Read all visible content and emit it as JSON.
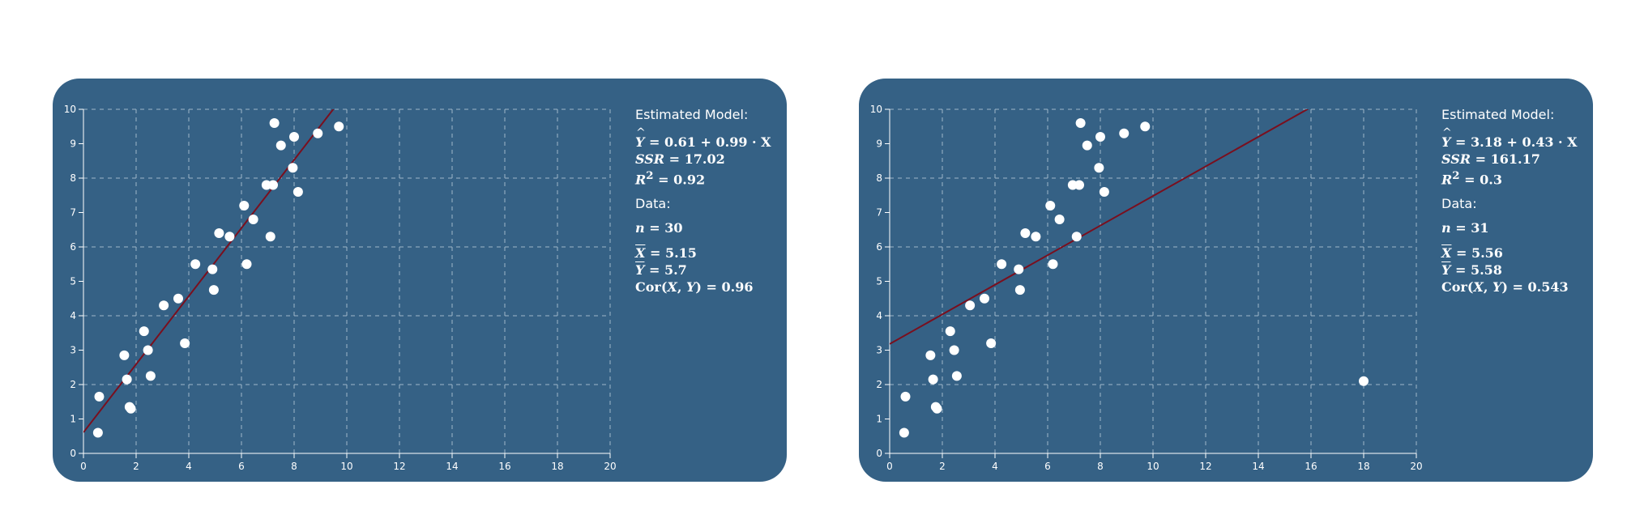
{
  "colors": {
    "panel": "#356185",
    "grid": "#9fb6c9",
    "axis": "#ffffff",
    "point": "#ffffff",
    "fit_line": "#7a0f1e"
  },
  "chart_data": [
    {
      "type": "scatter",
      "xlim": [
        0,
        20
      ],
      "ylim": [
        0,
        10
      ],
      "x_ticks": [
        "0",
        "2",
        "4",
        "6",
        "8",
        "10",
        "12",
        "14",
        "16",
        "18",
        "20"
      ],
      "y_ticks": [
        "0",
        "1",
        "2",
        "3",
        "4",
        "5",
        "6",
        "7",
        "8",
        "9",
        "10"
      ],
      "grid": true,
      "fit_line": {
        "intercept": 0.61,
        "slope": 0.99
      },
      "points": [
        [
          0.55,
          0.6
        ],
        [
          0.6,
          1.65
        ],
        [
          1.55,
          2.85
        ],
        [
          1.65,
          2.15
        ],
        [
          1.75,
          1.35
        ],
        [
          1.8,
          1.3
        ],
        [
          2.3,
          3.55
        ],
        [
          2.45,
          3.0
        ],
        [
          2.55,
          2.25
        ],
        [
          3.05,
          4.3
        ],
        [
          3.6,
          4.5
        ],
        [
          3.85,
          3.2
        ],
        [
          4.25,
          5.5
        ],
        [
          4.9,
          5.35
        ],
        [
          4.95,
          4.75
        ],
        [
          5.15,
          6.4
        ],
        [
          5.55,
          6.3
        ],
        [
          6.1,
          7.2
        ],
        [
          6.2,
          5.5
        ],
        [
          6.45,
          6.8
        ],
        [
          6.95,
          7.8
        ],
        [
          7.1,
          6.3
        ],
        [
          7.2,
          7.8
        ],
        [
          7.25,
          9.6
        ],
        [
          7.5,
          8.95
        ],
        [
          7.95,
          8.3
        ],
        [
          8.0,
          9.2
        ],
        [
          8.15,
          7.6
        ],
        [
          8.9,
          9.3
        ],
        [
          9.7,
          9.5
        ]
      ],
      "annotation": {
        "model_header": "Estimated Model:",
        "equation": "0.61 + 0.99 · X",
        "ssr": "17.02",
        "r2": "0.92",
        "data_header": "Data:",
        "n": "30",
        "mean_x": "5.15",
        "mean_y": "5.7",
        "cor": "0.96"
      }
    },
    {
      "type": "scatter",
      "xlim": [
        0,
        20
      ],
      "ylim": [
        0,
        10
      ],
      "x_ticks": [
        "0",
        "2",
        "4",
        "6",
        "8",
        "10",
        "12",
        "14",
        "16",
        "18",
        "20"
      ],
      "y_ticks": [
        "0",
        "1",
        "2",
        "3",
        "4",
        "5",
        "6",
        "7",
        "8",
        "9",
        "10"
      ],
      "grid": true,
      "fit_line": {
        "intercept": 3.18,
        "slope": 0.43
      },
      "points": [
        [
          0.55,
          0.6
        ],
        [
          0.6,
          1.65
        ],
        [
          1.55,
          2.85
        ],
        [
          1.65,
          2.15
        ],
        [
          1.75,
          1.35
        ],
        [
          1.8,
          1.3
        ],
        [
          2.3,
          3.55
        ],
        [
          2.45,
          3.0
        ],
        [
          2.55,
          2.25
        ],
        [
          3.05,
          4.3
        ],
        [
          3.6,
          4.5
        ],
        [
          3.85,
          3.2
        ],
        [
          4.25,
          5.5
        ],
        [
          4.9,
          5.35
        ],
        [
          4.95,
          4.75
        ],
        [
          5.15,
          6.4
        ],
        [
          5.55,
          6.3
        ],
        [
          6.1,
          7.2
        ],
        [
          6.2,
          5.5
        ],
        [
          6.45,
          6.8
        ],
        [
          6.95,
          7.8
        ],
        [
          7.1,
          6.3
        ],
        [
          7.2,
          7.8
        ],
        [
          7.25,
          9.6
        ],
        [
          7.5,
          8.95
        ],
        [
          7.95,
          8.3
        ],
        [
          8.0,
          9.2
        ],
        [
          8.15,
          7.6
        ],
        [
          8.9,
          9.3
        ],
        [
          9.7,
          9.5
        ],
        [
          18.0,
          2.1
        ]
      ],
      "annotation": {
        "model_header": "Estimated Model:",
        "equation": "3.18 + 0.43 · X",
        "ssr": "161.17",
        "r2": "0.3",
        "data_header": "Data:",
        "n": "31",
        "mean_x": "5.56",
        "mean_y": "5.58",
        "cor": "0.543"
      }
    }
  ]
}
